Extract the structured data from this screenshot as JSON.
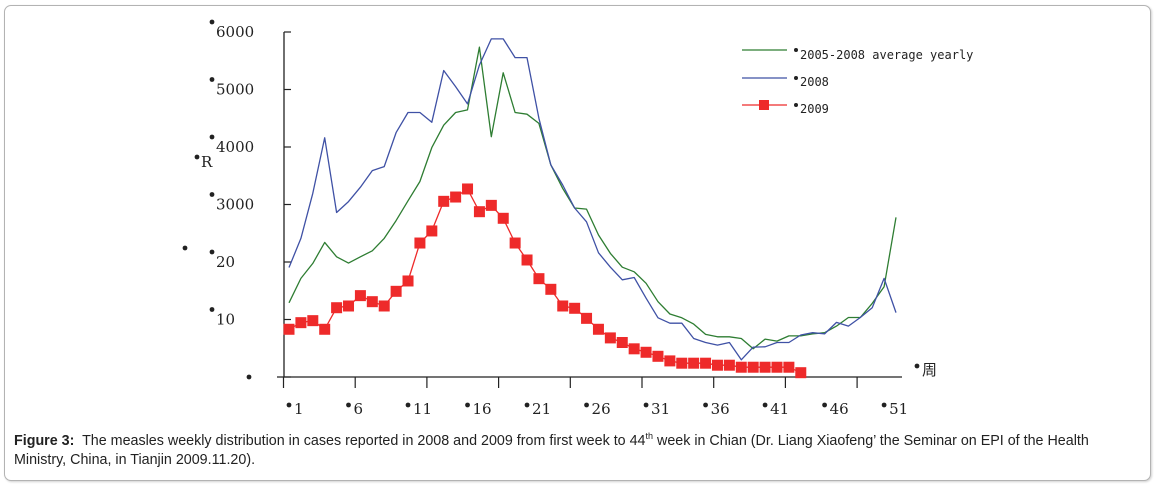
{
  "figure": {
    "caption_label": "Figure 3:",
    "caption_text_1": "The measles weekly distribution in cases reported in 2008 and 2009 from first week to 44",
    "caption_sup": "th",
    "caption_text_2": " week in Chian (Dr. Liang Xiaofeng’ the Seminar on EPI of the Health Ministry, China, in Tianjin 2009.11.20)."
  },
  "chart_data": {
    "type": "line",
    "title": "",
    "xlabel": "周",
    "ylabel": "R",
    "ylabel_extra_mark": "•",
    "ytick_labels": [
      "",
      "10",
      "20",
      "3000",
      "4000",
      "5000",
      "6000"
    ],
    "yticks": [
      0,
      1000,
      2000,
      3000,
      4000,
      5000,
      6000
    ],
    "ylim": [
      0,
      6000
    ],
    "xtick_labels": [
      "1",
      "6",
      "11",
      "16",
      "21",
      "26",
      "31",
      "36",
      "41",
      "46",
      "51"
    ],
    "xlim": [
      1,
      52
    ],
    "grid": false,
    "legend_position": "top-right",
    "x": [
      1,
      2,
      3,
      4,
      5,
      6,
      7,
      8,
      9,
      10,
      11,
      12,
      13,
      14,
      15,
      16,
      17,
      18,
      19,
      20,
      21,
      22,
      23,
      24,
      25,
      26,
      27,
      28,
      29,
      30,
      31,
      32,
      33,
      34,
      35,
      36,
      37,
      38,
      39,
      40,
      41,
      42,
      43,
      44,
      45,
      46,
      47,
      48,
      49,
      50,
      51,
      52
    ],
    "series": [
      {
        "name": "2005-2008 average yearly",
        "color": "#2e7d32",
        "marker": "none",
        "values": [
          1290,
          1715,
          1975,
          2340,
          2090,
          1980,
          2090,
          2195,
          2410,
          2720,
          3065,
          3400,
          3990,
          4380,
          4600,
          4645,
          5735,
          4180,
          5290,
          4600,
          4570,
          4410,
          3690,
          3280,
          2940,
          2920,
          2470,
          2150,
          1910,
          1830,
          1630,
          1310,
          1095,
          1030,
          920,
          740,
          700,
          700,
          670,
          490,
          660,
          625,
          715,
          715,
          750,
          770,
          885,
          1035,
          1035,
          1280,
          1570,
          2775
        ]
      },
      {
        "name": "2008",
        "color": "#3f51a5",
        "marker": "none",
        "values": [
          1905,
          2410,
          3195,
          4160,
          2860,
          3050,
          3300,
          3590,
          3660,
          4250,
          4600,
          4600,
          4430,
          5330,
          5050,
          4750,
          5425,
          5880,
          5880,
          5555,
          5555,
          4500,
          3690,
          3340,
          2940,
          2700,
          2160,
          1910,
          1690,
          1730,
          1370,
          1030,
          935,
          935,
          670,
          600,
          555,
          600,
          300,
          520,
          525,
          600,
          600,
          730,
          770,
          750,
          950,
          885,
          1035,
          1205,
          1715,
          1120
        ]
      },
      {
        "name": "2009",
        "color": "#ee2a2a",
        "marker": "square",
        "values": [
          830,
          945,
          980,
          830,
          1205,
          1235,
          1415,
          1310,
          1235,
          1490,
          1670,
          2330,
          2540,
          3055,
          3130,
          3270,
          2875,
          2985,
          2760,
          2330,
          2035,
          1710,
          1525,
          1235,
          1195,
          1020,
          830,
          680,
          600,
          490,
          430,
          360,
          280,
          240,
          240,
          240,
          205,
          205,
          170,
          170,
          170,
          170,
          170,
          75
        ]
      }
    ]
  }
}
